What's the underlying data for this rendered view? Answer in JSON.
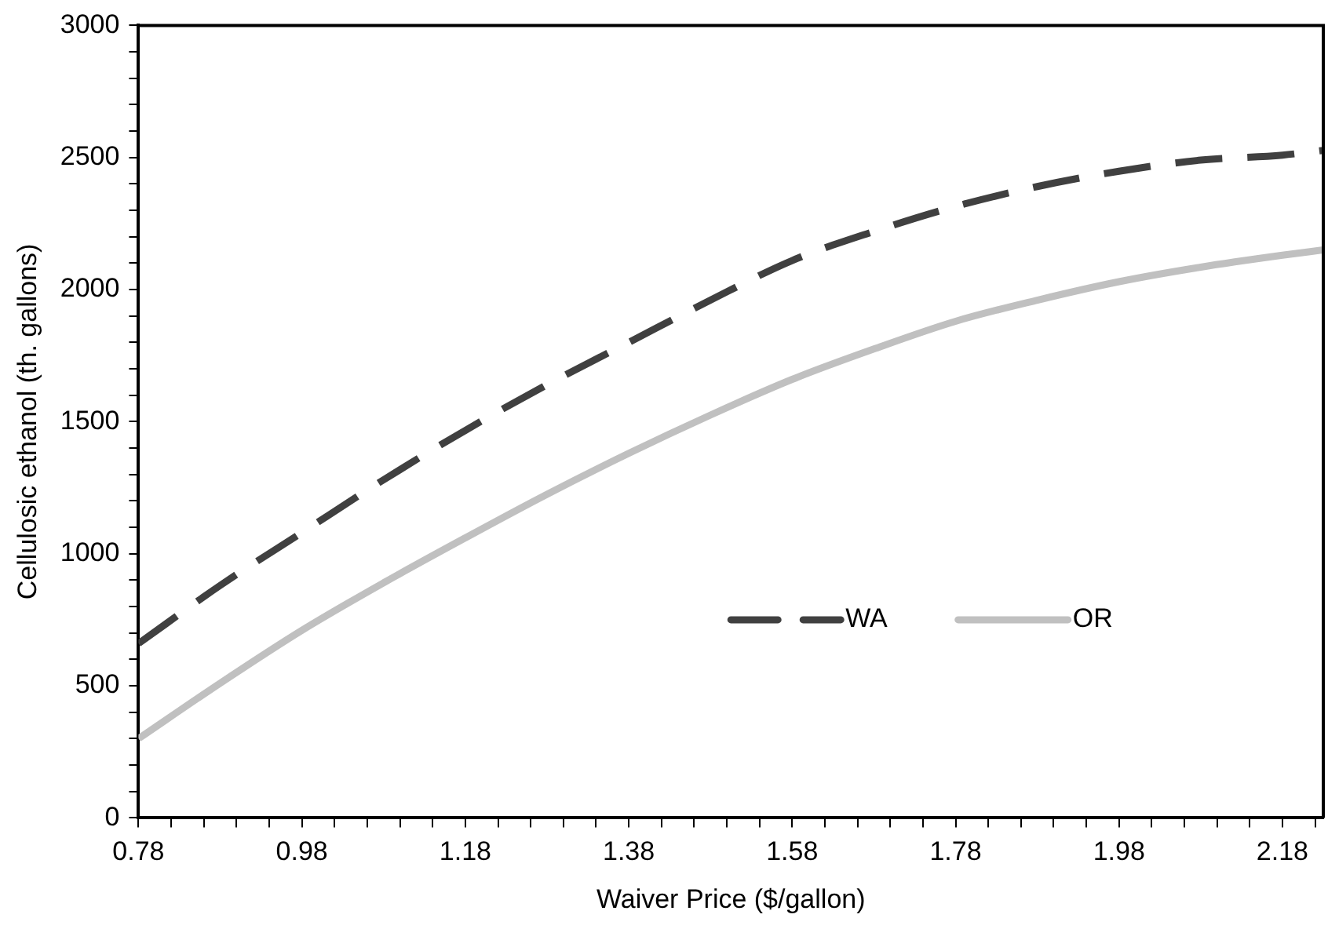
{
  "chart_data": {
    "type": "line",
    "xlabel": "Waiver Price ($/gallon)",
    "ylabel": "Cellulosic ethanol (th. gallons)",
    "x": [
      0.78,
      0.88,
      0.98,
      1.08,
      1.18,
      1.28,
      1.38,
      1.48,
      1.58,
      1.68,
      1.78,
      1.88,
      1.98,
      2.08,
      2.18,
      2.23
    ],
    "series": [
      {
        "name": "WA",
        "color": "#404040",
        "line_style": "dashed",
        "values": [
          660,
          880,
          1080,
          1280,
          1467,
          1640,
          1800,
          1960,
          2110,
          2220,
          2315,
          2390,
          2448,
          2490,
          2509,
          2527
        ]
      },
      {
        "name": "OR",
        "color": "#c0c0c0",
        "line_style": "solid",
        "values": [
          300,
          510,
          710,
          890,
          1060,
          1225,
          1380,
          1525,
          1660,
          1775,
          1880,
          1960,
          2030,
          2085,
          2130,
          2150
        ]
      }
    ],
    "xlim": [
      0.78,
      2.23
    ],
    "xticks": [
      0.78,
      {
        "value": 0.82,
        "label": null
      },
      {
        "value": 0.86,
        "label": null
      },
      {
        "value": 0.9,
        "label": null
      },
      {
        "value": 0.94,
        "label": null
      },
      0.98,
      {
        "value": 1.02,
        "label": null
      },
      {
        "value": 1.06,
        "label": null
      },
      {
        "value": 1.1,
        "label": null
      },
      {
        "value": 1.14,
        "label": null
      },
      1.18,
      {
        "value": 1.22,
        "label": null
      },
      {
        "value": 1.26,
        "label": null
      },
      {
        "value": 1.3,
        "label": null
      },
      {
        "value": 1.34,
        "label": null
      },
      1.38,
      {
        "value": 1.42,
        "label": null
      },
      {
        "value": 1.46,
        "label": null
      },
      {
        "value": 1.5,
        "label": null
      },
      {
        "value": 1.54,
        "label": null
      },
      1.58,
      {
        "value": 1.62,
        "label": null
      },
      {
        "value": 1.66,
        "label": null
      },
      {
        "value": 1.7,
        "label": null
      },
      {
        "value": 1.74,
        "label": null
      },
      1.78,
      {
        "value": 1.82,
        "label": null
      },
      {
        "value": 1.86,
        "label": null
      },
      {
        "value": 1.9,
        "label": null
      },
      {
        "value": 1.94,
        "label": null
      },
      1.98,
      {
        "value": 2.02,
        "label": null
      },
      {
        "value": 2.06,
        "label": null
      },
      {
        "value": 2.1,
        "label": null
      },
      {
        "value": 2.14,
        "label": null
      },
      2.18,
      {
        "value": 2.22,
        "label": null
      }
    ],
    "ylim": [
      0,
      3000
    ],
    "yticks": [
      0,
      {
        "value": 100,
        "label": null
      },
      {
        "value": 200,
        "label": null
      },
      {
        "value": 300,
        "label": null
      },
      {
        "value": 400,
        "label": null
      },
      500,
      {
        "value": 600,
        "label": null
      },
      {
        "value": 700,
        "label": null
      },
      {
        "value": 800,
        "label": null
      },
      {
        "value": 900,
        "label": null
      },
      1000,
      {
        "value": 1100,
        "label": null
      },
      {
        "value": 1200,
        "label": null
      },
      {
        "value": 1300,
        "label": null
      },
      {
        "value": 1400,
        "label": null
      },
      1500,
      {
        "value": 1600,
        "label": null
      },
      {
        "value": 1700,
        "label": null
      },
      {
        "value": 1800,
        "label": null
      },
      {
        "value": 1900,
        "label": null
      },
      2000,
      {
        "value": 2100,
        "label": null
      },
      {
        "value": 2200,
        "label": null
      },
      {
        "value": 2300,
        "label": null
      },
      {
        "value": 2400,
        "label": null
      },
      2500,
      {
        "value": 2600,
        "label": null
      },
      {
        "value": 2700,
        "label": null
      },
      {
        "value": 2800,
        "label": null
      },
      {
        "value": 2900,
        "label": null
      },
      3000
    ],
    "grid": false,
    "legend": "bottom right",
    "marker": "none"
  }
}
